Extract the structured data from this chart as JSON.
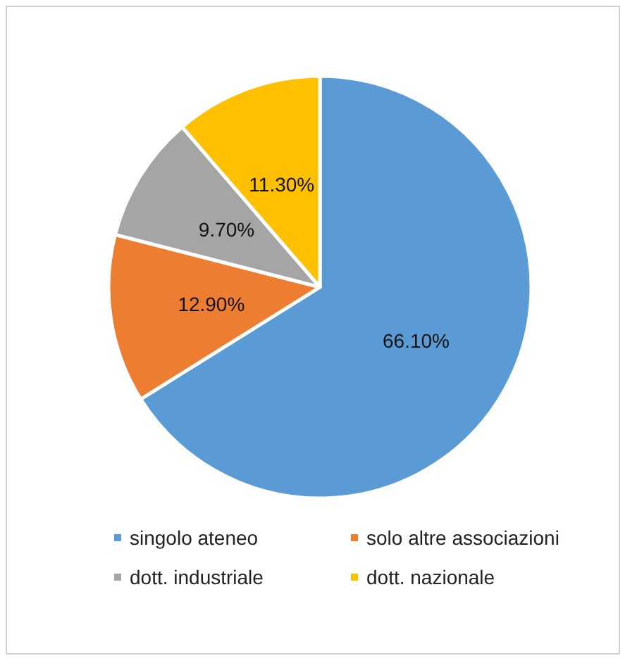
{
  "chart_data": {
    "type": "pie",
    "categories": [
      "singolo ateneo",
      "solo altre associazioni",
      "dott. industriale",
      "dott. nazionale"
    ],
    "values": [
      66.1,
      12.9,
      9.7,
      11.3
    ],
    "colors": [
      "#5b9bd5",
      "#ed7d31",
      "#a5a5a5",
      "#ffc000"
    ],
    "value_labels": [
      "66.10%",
      "12.90%",
      "9.70%",
      "11.30%"
    ],
    "legend": "bottom"
  }
}
